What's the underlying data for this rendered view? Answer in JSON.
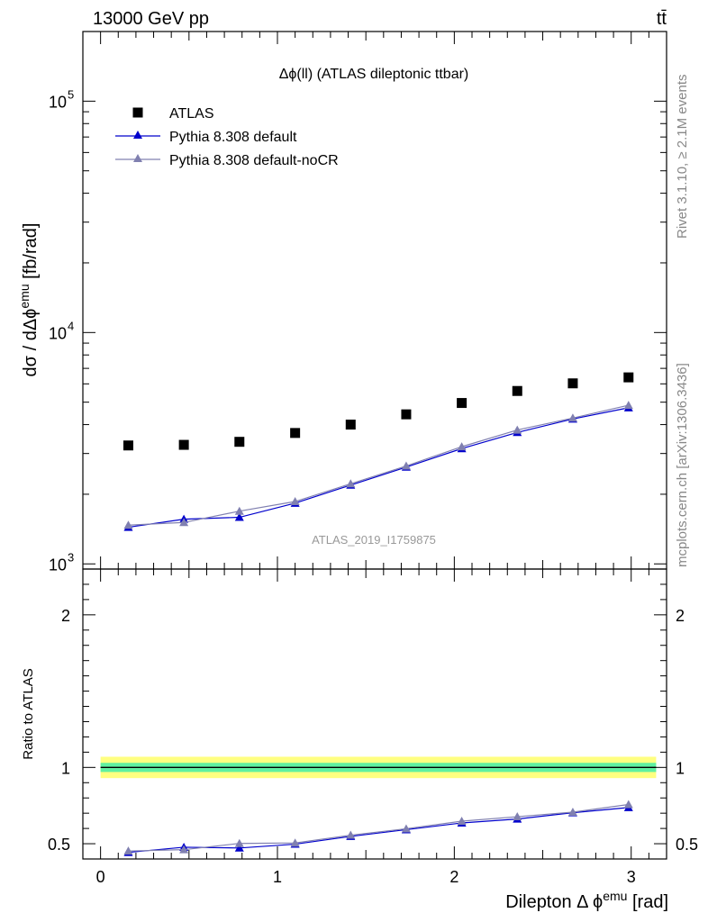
{
  "header": {
    "energy_label": "13000 GeV pp",
    "process_label": "tt̄"
  },
  "side": {
    "rivet_label": "Rivet 3.1.10, ≥ 2.1M events",
    "mcplots_label": "mcplots.cern.ch [arXiv:1306.3436]"
  },
  "chart_data": [
    {
      "type": "scatter",
      "title": "Δϕ(ll) (ATLAS dileptonic ttbar)",
      "ylabel": "dσ / dΔϕ^emu [fb/rad]",
      "xlabel": "",
      "yscale": "log",
      "ylim": [
        950,
        200000
      ],
      "xlim": [
        -0.1,
        3.2
      ],
      "y_ticks": [
        {
          "value": 1000,
          "label": "10",
          "exp": "3"
        },
        {
          "value": 10000,
          "label": "10",
          "exp": "4"
        },
        {
          "value": 100000,
          "label": "10",
          "exp": "5"
        }
      ],
      "watermark": "ATLAS_2019_I1759875",
      "x": [
        0.157,
        0.471,
        0.785,
        1.1,
        1.414,
        1.728,
        2.042,
        2.356,
        2.67,
        2.985
      ],
      "series": [
        {
          "name": "ATLAS",
          "marker": "square",
          "color": "#000000",
          "values": [
            3250,
            3270,
            3370,
            3680,
            4000,
            4430,
            4960,
            5590,
            6030,
            6400
          ]
        },
        {
          "name": "Pythia 8.308 default",
          "marker": "triangle",
          "color": "#0000cc",
          "values": [
            1440,
            1560,
            1590,
            1830,
            2190,
            2620,
            3150,
            3700,
            4230,
            4730
          ]
        },
        {
          "name": "Pythia 8.308 default-noCR",
          "marker": "triangle",
          "color": "#8080b0",
          "values": [
            1470,
            1510,
            1690,
            1860,
            2220,
            2650,
            3210,
            3790,
            4270,
            4850
          ]
        }
      ]
    },
    {
      "type": "scatter",
      "ylabel": "Ratio to ATLAS",
      "xlabel": "Dilepton Δϕ^emu [rad]",
      "ylim": [
        0.4,
        2.3
      ],
      "xlim": [
        -0.1,
        3.2
      ],
      "x_ticks": [
        "0",
        "1",
        "2",
        "3"
      ],
      "y_ticks": [
        "0.5",
        "1",
        "2"
      ],
      "reference_line": 1,
      "band_inner": [
        0.97,
        1.03
      ],
      "band_outer": [
        0.93,
        1.07
      ],
      "x": [
        0.157,
        0.471,
        0.785,
        1.1,
        1.414,
        1.728,
        2.042,
        2.356,
        2.67,
        2.985
      ],
      "series": [
        {
          "name": "Pythia 8.308 default",
          "marker": "triangle",
          "color": "#0000cc",
          "values": [
            0.443,
            0.477,
            0.472,
            0.497,
            0.548,
            0.592,
            0.636,
            0.662,
            0.703,
            0.737
          ]
        },
        {
          "name": "Pythia 8.308 default-noCR",
          "marker": "triangle",
          "color": "#8080b0",
          "values": [
            0.452,
            0.461,
            0.502,
            0.505,
            0.556,
            0.598,
            0.648,
            0.677,
            0.707,
            0.757
          ]
        }
      ]
    }
  ]
}
